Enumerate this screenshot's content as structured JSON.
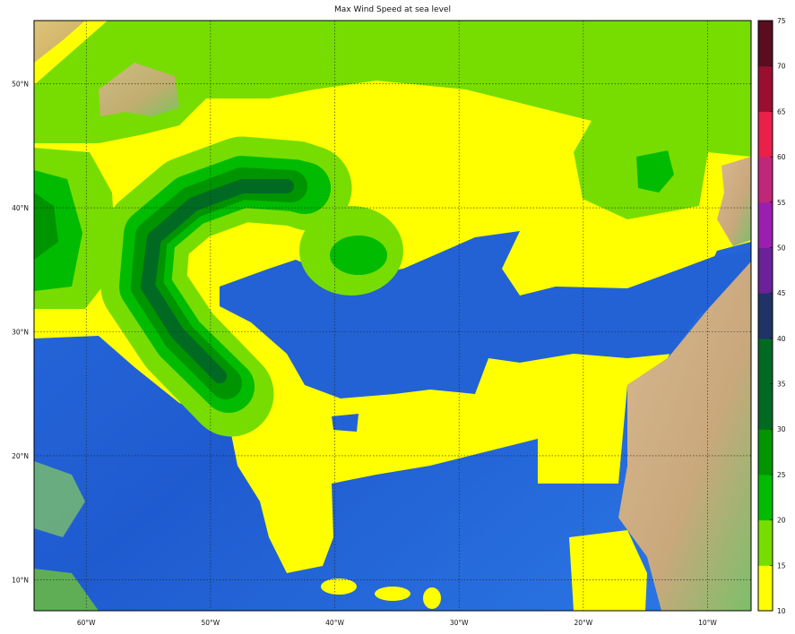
{
  "title": "Max Wind Speed at sea level",
  "map": {
    "lon_range": [
      -64.2,
      -6.5
    ],
    "lat_range": [
      7.5,
      55.1
    ],
    "lon_ticks": [
      {
        "value": -60,
        "label": "60°W"
      },
      {
        "value": -50,
        "label": "50°W"
      },
      {
        "value": -40,
        "label": "40°W"
      },
      {
        "value": -30,
        "label": "30°W"
      },
      {
        "value": -20,
        "label": "20°W"
      },
      {
        "value": -10,
        "label": "10°W"
      }
    ],
    "lat_ticks": [
      {
        "value": 50,
        "label": "50°N"
      },
      {
        "value": 40,
        "label": "40°N"
      },
      {
        "value": 30,
        "label": "30°N"
      },
      {
        "value": 20,
        "label": "20°N"
      },
      {
        "value": 10,
        "label": "10°N"
      }
    ],
    "grid": true
  },
  "colorbar": {
    "levels": [
      10,
      15,
      20,
      25,
      30,
      35,
      40,
      45,
      50,
      55,
      60,
      65,
      70,
      75
    ],
    "colors": [
      "#ffff00",
      "#77dd00",
      "#00bb00",
      "#009400",
      "#006a22",
      "#006a22",
      "#1f3366",
      "#6a2199",
      "#9a1fb0",
      "#c0267a",
      "#e8204a",
      "#9a0f30",
      "#5a0c20"
    ]
  }
}
